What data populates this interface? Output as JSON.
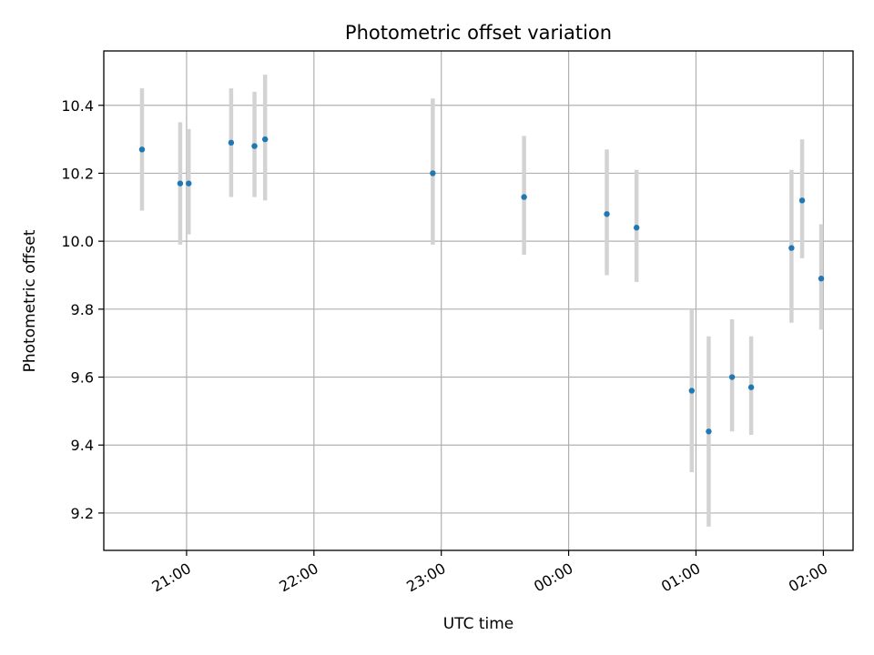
{
  "chart_data": {
    "type": "scatter",
    "title": "Photometric offset variation",
    "xlabel": "UTC time",
    "ylabel": "Photometric offset",
    "x_unit": "time (HH:MM)",
    "xlim": [
      "20:21",
      "02:14"
    ],
    "ylim": [
      9.09,
      10.56
    ],
    "x_ticks": [
      "21:00",
      "22:00",
      "23:00",
      "00:00",
      "01:00",
      "02:00"
    ],
    "y_ticks": [
      9.2,
      9.4,
      9.6,
      9.8,
      10.0,
      10.2,
      10.4
    ],
    "grid": true,
    "legend": "none",
    "marker_color": "#1f77b4",
    "errorbar_color": "#d3d3d3",
    "series": [
      {
        "points": [
          {
            "x": "20:39",
            "y": 10.27,
            "err_low": 10.09,
            "err_high": 10.45
          },
          {
            "x": "20:57",
            "y": 10.17,
            "err_low": 9.99,
            "err_high": 10.35
          },
          {
            "x": "21:01",
            "y": 10.17,
            "err_low": 10.02,
            "err_high": 10.33
          },
          {
            "x": "21:21",
            "y": 10.29,
            "err_low": 10.13,
            "err_high": 10.45
          },
          {
            "x": "21:32",
            "y": 10.28,
            "err_low": 10.13,
            "err_high": 10.44
          },
          {
            "x": "21:37",
            "y": 10.3,
            "err_low": 10.12,
            "err_high": 10.49
          },
          {
            "x": "22:56",
            "y": 10.2,
            "err_low": 9.99,
            "err_high": 10.42
          },
          {
            "x": "23:39",
            "y": 10.13,
            "err_low": 9.96,
            "err_high": 10.31
          },
          {
            "x": "00:18",
            "y": 10.08,
            "err_low": 9.9,
            "err_high": 10.27
          },
          {
            "x": "00:32",
            "y": 10.04,
            "err_low": 9.88,
            "err_high": 10.21
          },
          {
            "x": "00:58",
            "y": 9.56,
            "err_low": 9.32,
            "err_high": 9.8
          },
          {
            "x": "01:06",
            "y": 9.44,
            "err_low": 9.16,
            "err_high": 9.72
          },
          {
            "x": "01:17",
            "y": 9.6,
            "err_low": 9.44,
            "err_high": 9.77
          },
          {
            "x": "01:26",
            "y": 9.57,
            "err_low": 9.43,
            "err_high": 9.72
          },
          {
            "x": "01:45",
            "y": 9.98,
            "err_low": 9.76,
            "err_high": 10.21
          },
          {
            "x": "01:50",
            "y": 10.12,
            "err_low": 9.95,
            "err_high": 10.3
          },
          {
            "x": "01:59",
            "y": 9.89,
            "err_low": 9.74,
            "err_high": 10.05
          }
        ]
      }
    ]
  }
}
